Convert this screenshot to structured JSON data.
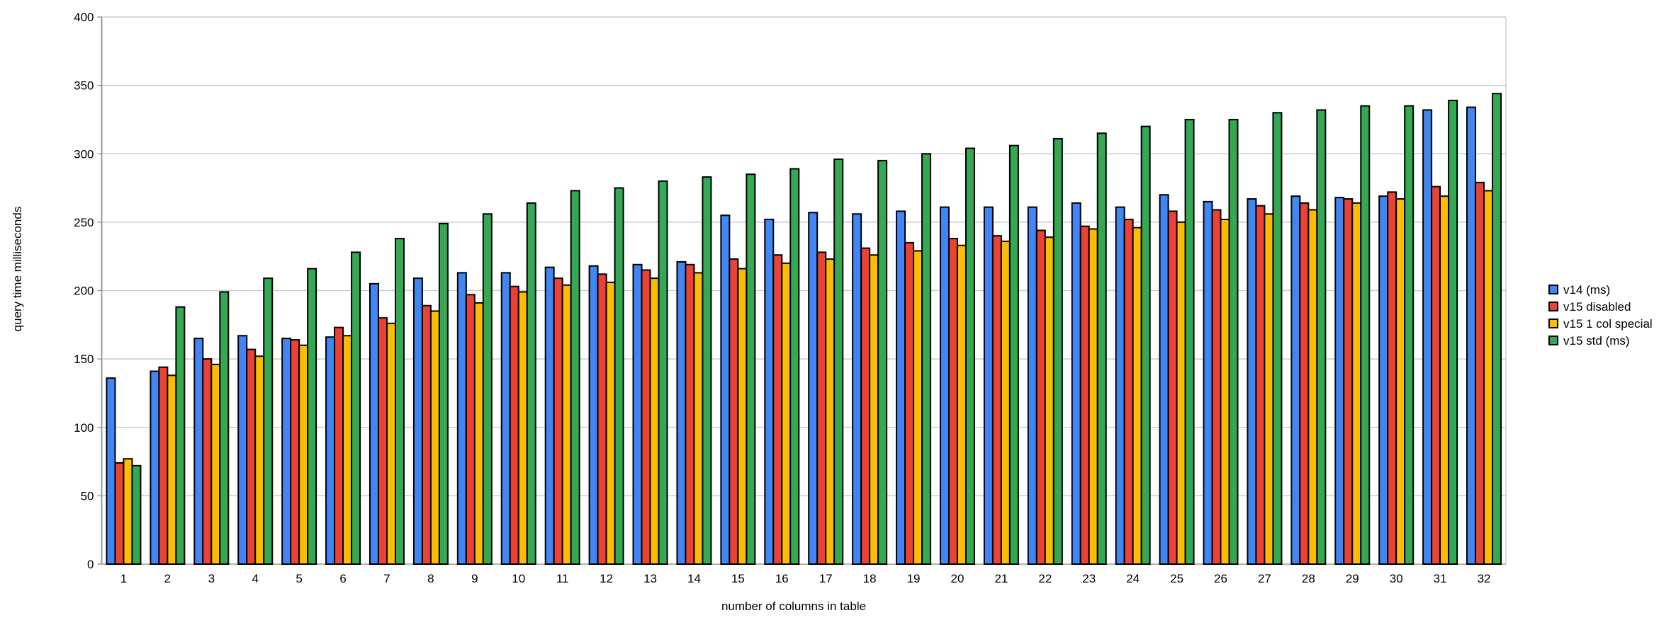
{
  "chart_data": {
    "type": "bar",
    "title": "",
    "xlabel": "number of columns in table",
    "ylabel": "query time milliseconds",
    "categories": [
      "1",
      "2",
      "3",
      "4",
      "5",
      "6",
      "7",
      "8",
      "9",
      "10",
      "11",
      "12",
      "13",
      "14",
      "15",
      "16",
      "17",
      "18",
      "19",
      "20",
      "21",
      "22",
      "23",
      "24",
      "25",
      "26",
      "27",
      "28",
      "29",
      "30",
      "31",
      "32"
    ],
    "series": [
      {
        "name": "v14 (ms)",
        "color": "#4285F4",
        "values": [
          136,
          141,
          165,
          167,
          165,
          166,
          205,
          209,
          213,
          213,
          217,
          218,
          219,
          221,
          255,
          252,
          257,
          256,
          258,
          261,
          261,
          261,
          264,
          261,
          270,
          265,
          267,
          269,
          268,
          269,
          332,
          334
        ]
      },
      {
        "name": "v15 disabled",
        "color": "#EA4335",
        "values": [
          74,
          144,
          150,
          157,
          164,
          173,
          180,
          189,
          197,
          203,
          209,
          212,
          215,
          219,
          223,
          226,
          228,
          231,
          235,
          238,
          240,
          244,
          247,
          252,
          258,
          259,
          262,
          264,
          267,
          272,
          276,
          279
        ]
      },
      {
        "name": "v15 1 col special",
        "color": "#FBBC05",
        "values": [
          77,
          138,
          146,
          152,
          160,
          167,
          176,
          185,
          191,
          199,
          204,
          206,
          209,
          213,
          216,
          220,
          223,
          226,
          229,
          233,
          236,
          239,
          245,
          246,
          250,
          252,
          256,
          259,
          264,
          267,
          269,
          273
        ]
      },
      {
        "name": "v15 std (ms)",
        "color": "#34A853",
        "values": [
          72,
          188,
          199,
          209,
          216,
          228,
          238,
          249,
          256,
          264,
          273,
          275,
          280,
          283,
          285,
          289,
          296,
          295,
          300,
          304,
          306,
          311,
          315,
          320,
          325,
          325,
          330,
          332,
          335,
          335,
          339,
          344
        ]
      }
    ],
    "ylim": [
      0,
      400
    ],
    "yticks": [
      0,
      50,
      100,
      150,
      200,
      250,
      300,
      350,
      400
    ],
    "grid": true,
    "legend_position": "right",
    "bar_stroke_color": "#000000",
    "gridline_color": "#cccccc",
    "axis_line_color": "#999999",
    "background_color": "#ffffff"
  }
}
